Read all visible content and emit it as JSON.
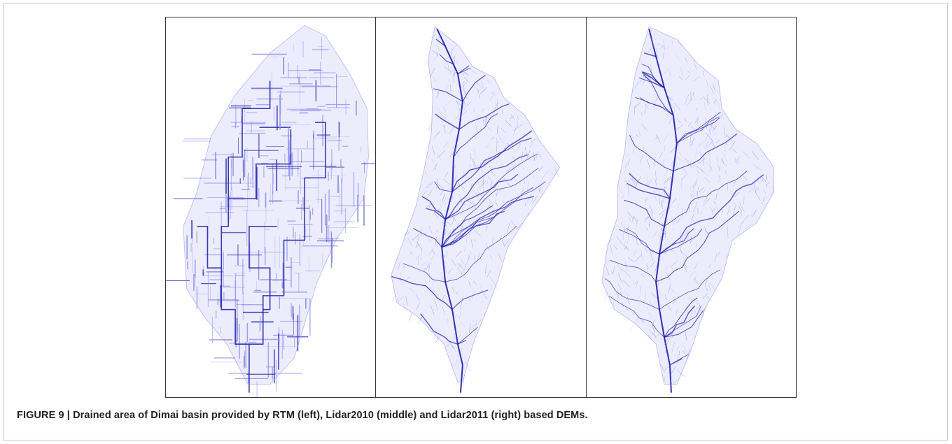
{
  "figure": {
    "caption": "FIGURE 9 | Drained area of Dimai basin provided by RTM (left), Lidar2010 (middle) and Lidar2011 (right) based DEMs.",
    "panels": [
      {
        "name": "drained-area-map-rtm",
        "style": "grid"
      },
      {
        "name": "drained-area-map-lidar2010",
        "style": "organic"
      },
      {
        "name": "drained-area-map-lidar2011",
        "style": "organic"
      }
    ],
    "colors": {
      "channel_main": "#1a1aa8",
      "channel_light": "#8c8cf0",
      "basin_fill": "#c8c8fa",
      "panel_border": "#3a3a3a"
    }
  }
}
